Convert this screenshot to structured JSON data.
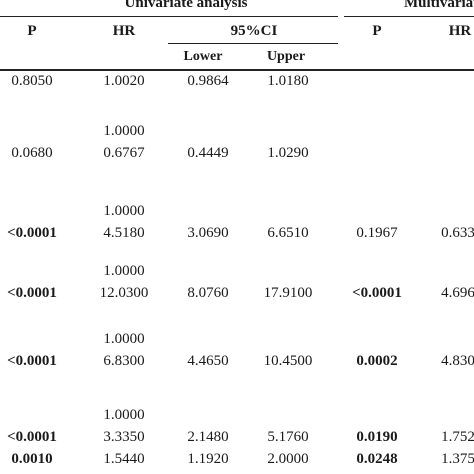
{
  "groups": {
    "univariate": "Univariate analysis",
    "multivariate": "Multivariate"
  },
  "headers": {
    "p": "P",
    "hr": "HR",
    "ci": "95%CI",
    "lower": "Lower",
    "upper": "Upper",
    "p2": "P",
    "hr2": "HR"
  },
  "rows": [
    {
      "ref": "",
      "p": "0.8050",
      "p_bold": false,
      "hr": "1.0020",
      "lower": "0.9864",
      "upper": "1.0180",
      "mp": "",
      "mp_bold": false,
      "mhr": ""
    },
    {
      "ref": "1.0000",
      "p": "0.0680",
      "p_bold": false,
      "hr": "0.6767",
      "lower": "0.4449",
      "upper": "1.0290",
      "mp": "",
      "mp_bold": false,
      "mhr": ""
    },
    {
      "ref": "1.0000",
      "p": "<0.0001",
      "p_bold": true,
      "hr": "4.5180",
      "lower": "3.0690",
      "upper": "6.6510",
      "mp": "0.1967",
      "mp_bold": false,
      "mhr": "0.633"
    },
    {
      "ref": "1.0000",
      "p": "<0.0001",
      "p_bold": true,
      "hr": "12.0300",
      "lower": "8.0760",
      "upper": "17.9100",
      "mp": "<0.0001",
      "mp_bold": true,
      "mhr": "4.696"
    },
    {
      "ref": "1.0000",
      "p": "<0.0001",
      "p_bold": true,
      "hr": "6.8300",
      "lower": "4.4650",
      "upper": "10.4500",
      "mp": "0.0002",
      "mp_bold": true,
      "mhr": "4.830"
    },
    {
      "ref": "1.0000",
      "p": "<0.0001",
      "p_bold": true,
      "hr": "3.3350",
      "lower": "2.1480",
      "upper": "5.1760",
      "mp": "0.0190",
      "mp_bold": true,
      "mhr": "1.752"
    },
    {
      "ref": "",
      "p": "0.0010",
      "p_bold": true,
      "hr": "1.5440",
      "lower": "1.1920",
      "upper": "2.0000",
      "mp": "0.0248",
      "mp_bold": true,
      "mhr": "1.375"
    }
  ]
}
